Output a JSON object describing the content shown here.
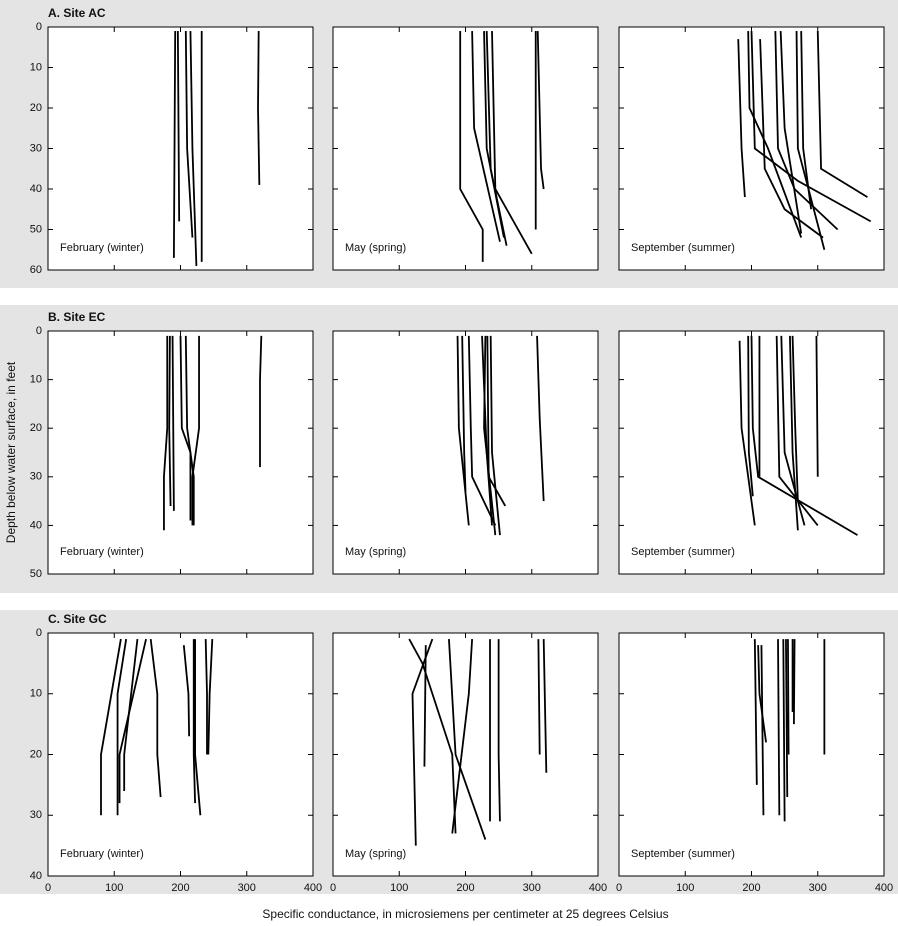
{
  "chart_data": [
    {
      "type": "line",
      "title": "A. Site AC",
      "annotation": "February (winter)",
      "xlim": [
        0,
        400
      ],
      "xticks": [
        0,
        100,
        200,
        300,
        400
      ],
      "ylim": [
        0,
        60
      ],
      "yticks": [
        0,
        10,
        20,
        30,
        40,
        50,
        60
      ],
      "inverted_y": true,
      "color": "#000000",
      "series": [
        {
          "x": [
            192,
            190
          ],
          "values": [
            1,
            57
          ]
        },
        {
          "x": [
            196,
            198
          ],
          "values": [
            1,
            48
          ]
        },
        {
          "x": [
            208,
            210,
            218
          ],
          "values": [
            1,
            30,
            52
          ]
        },
        {
          "x": [
            215,
            218,
            224
          ],
          "values": [
            1,
            30,
            59
          ]
        },
        {
          "x": [
            232,
            232
          ],
          "values": [
            1,
            58
          ]
        },
        {
          "x": [
            318,
            317,
            319
          ],
          "values": [
            1,
            20,
            39
          ]
        }
      ]
    },
    {
      "type": "line",
      "annotation": "May (spring)",
      "xlim": [
        0,
        400
      ],
      "xticks": [
        0,
        100,
        200,
        300,
        400
      ],
      "ylim": [
        0,
        60
      ],
      "yticks": [
        0,
        10,
        20,
        30,
        40,
        50,
        60
      ],
      "inverted_y": true,
      "color": "#000000",
      "series": [
        {
          "x": [
            192,
            192,
            226,
            226
          ],
          "values": [
            1,
            40,
            50,
            58
          ]
        },
        {
          "x": [
            210,
            213,
            252
          ],
          "values": [
            1,
            25,
            53
          ]
        },
        {
          "x": [
            228,
            232,
            258
          ],
          "values": [
            1,
            30,
            52
          ]
        },
        {
          "x": [
            232,
            238,
            262
          ],
          "values": [
            1,
            35,
            54
          ]
        },
        {
          "x": [
            240,
            245,
            300
          ],
          "values": [
            1,
            40,
            56
          ]
        },
        {
          "x": [
            306,
            306
          ],
          "values": [
            1,
            50
          ]
        },
        {
          "x": [
            309,
            314,
            318
          ],
          "values": [
            1,
            35,
            40
          ]
        }
      ]
    },
    {
      "type": "line",
      "annotation": "September (summer)",
      "xlim": [
        0,
        400
      ],
      "xticks": [
        0,
        100,
        200,
        300,
        400
      ],
      "ylim": [
        0,
        60
      ],
      "yticks": [
        0,
        10,
        20,
        30,
        40,
        50,
        60
      ],
      "inverted_y": true,
      "color": "#000000",
      "series": [
        {
          "x": [
            180,
            185,
            190
          ],
          "values": [
            3,
            30,
            42
          ]
        },
        {
          "x": [
            195,
            197,
            225,
            275
          ],
          "values": [
            1,
            20,
            30,
            52
          ]
        },
        {
          "x": [
            200,
            205,
            270,
            380
          ],
          "values": [
            1,
            30,
            38,
            48
          ]
        },
        {
          "x": [
            213,
            220,
            250,
            308
          ],
          "values": [
            3,
            35,
            45,
            52
          ]
        },
        {
          "x": [
            236,
            240,
            265,
            330
          ],
          "values": [
            1,
            30,
            40,
            50
          ]
        },
        {
          "x": [
            244,
            250,
            275
          ],
          "values": [
            1,
            25,
            51
          ]
        },
        {
          "x": [
            268,
            270,
            310
          ],
          "values": [
            1,
            30,
            55
          ]
        },
        {
          "x": [
            275,
            278,
            290
          ],
          "values": [
            1,
            30,
            45
          ]
        },
        {
          "x": [
            300,
            305,
            375
          ],
          "values": [
            1,
            35,
            42
          ]
        }
      ]
    },
    {
      "type": "line",
      "title": "B. Site EC",
      "ylabel": "Depth below water surface, in feet",
      "annotation": "February (winter)",
      "xlim": [
        0,
        400
      ],
      "xticks": [
        0,
        100,
        200,
        300,
        400
      ],
      "ylim": [
        0,
        50
      ],
      "yticks": [
        0,
        10,
        20,
        30,
        40,
        50
      ],
      "inverted_y": true,
      "color": "#000000",
      "series": [
        {
          "x": [
            180,
            180,
            175,
            175
          ],
          "values": [
            1,
            20,
            30,
            41
          ]
        },
        {
          "x": [
            184,
            183,
            185
          ],
          "values": [
            1,
            20,
            36
          ]
        },
        {
          "x": [
            188,
            190
          ],
          "values": [
            1,
            37
          ]
        },
        {
          "x": [
            200,
            202,
            215,
            215
          ],
          "values": [
            1,
            20,
            25,
            39
          ]
        },
        {
          "x": [
            208,
            210,
            220,
            220
          ],
          "values": [
            1,
            20,
            30,
            40
          ]
        },
        {
          "x": [
            228,
            228,
            218,
            218
          ],
          "values": [
            1,
            20,
            30,
            40
          ]
        },
        {
          "x": [
            322,
            320,
            320
          ],
          "values": [
            1,
            10,
            28
          ]
        }
      ]
    },
    {
      "type": "line",
      "annotation": "May (spring)",
      "xlim": [
        0,
        400
      ],
      "xticks": [
        0,
        100,
        200,
        300,
        400
      ],
      "ylim": [
        0,
        50
      ],
      "yticks": [
        0,
        10,
        20,
        30,
        40,
        50
      ],
      "inverted_y": true,
      "color": "#000000",
      "series": [
        {
          "x": [
            188,
            190,
            205
          ],
          "values": [
            1,
            20,
            40
          ]
        },
        {
          "x": [
            195,
            198,
            200
          ],
          "values": [
            1,
            25,
            33
          ]
        },
        {
          "x": [
            205,
            208,
            210,
            245
          ],
          "values": [
            1,
            20,
            30,
            40
          ]
        },
        {
          "x": [
            225,
            232,
            240
          ],
          "values": [
            1,
            25,
            40
          ]
        },
        {
          "x": [
            230,
            228,
            245
          ],
          "values": [
            1,
            20,
            42
          ]
        },
        {
          "x": [
            233,
            235,
            260
          ],
          "values": [
            1,
            30,
            36
          ]
        },
        {
          "x": [
            238,
            240,
            252
          ],
          "values": [
            1,
            25,
            42
          ]
        },
        {
          "x": [
            308,
            312,
            318
          ],
          "values": [
            1,
            18,
            35
          ]
        }
      ]
    },
    {
      "type": "line",
      "annotation": "September (summer)",
      "xlim": [
        0,
        400
      ],
      "xticks": [
        0,
        100,
        200,
        300,
        400
      ],
      "ylim": [
        0,
        50
      ],
      "yticks": [
        0,
        10,
        20,
        30,
        40,
        50
      ],
      "inverted_y": true,
      "color": "#000000",
      "series": [
        {
          "x": [
            182,
            185,
            205
          ],
          "values": [
            2,
            20,
            40
          ]
        },
        {
          "x": [
            195,
            196,
            202
          ],
          "values": [
            1,
            25,
            34
          ]
        },
        {
          "x": [
            200,
            202,
            210,
            360
          ],
          "values": [
            1,
            20,
            30,
            42
          ]
        },
        {
          "x": [
            212,
            212
          ],
          "values": [
            1,
            30
          ]
        },
        {
          "x": [
            238,
            242,
            300
          ],
          "values": [
            1,
            30,
            40
          ]
        },
        {
          "x": [
            245,
            250,
            280
          ],
          "values": [
            1,
            25,
            40
          ]
        },
        {
          "x": [
            258,
            262,
            270
          ],
          "values": [
            1,
            25,
            41
          ]
        },
        {
          "x": [
            262,
            266,
            270
          ],
          "values": [
            1,
            20,
            35
          ]
        },
        {
          "x": [
            298,
            300
          ],
          "values": [
            1,
            30
          ]
        }
      ]
    },
    {
      "type": "line",
      "title": "C. Site GC",
      "annotation": "February (winter)",
      "xlim": [
        0,
        400
      ],
      "xticks": [
        0,
        100,
        200,
        300,
        400
      ],
      "ylim": [
        0,
        40
      ],
      "yticks": [
        0,
        10,
        20,
        30,
        40
      ],
      "inverted_y": true,
      "color": "#000000",
      "series": [
        {
          "x": [
            110,
            80,
            80
          ],
          "values": [
            1,
            20,
            30
          ]
        },
        {
          "x": [
            118,
            105,
            105
          ],
          "values": [
            1,
            10,
            30
          ]
        },
        {
          "x": [
            135,
            115,
            115
          ],
          "values": [
            1,
            20,
            26
          ]
        },
        {
          "x": [
            148,
            108,
            108
          ],
          "values": [
            1,
            20,
            28
          ]
        },
        {
          "x": [
            155,
            165,
            165,
            170
          ],
          "values": [
            1,
            10,
            20,
            27
          ]
        },
        {
          "x": [
            205,
            212,
            213
          ],
          "values": [
            2,
            10,
            17
          ]
        },
        {
          "x": [
            220,
            220,
            222
          ],
          "values": [
            1,
            20,
            28
          ]
        },
        {
          "x": [
            222,
            222,
            230
          ],
          "values": [
            1,
            20,
            30
          ]
        },
        {
          "x": [
            238,
            240,
            240
          ],
          "values": [
            1,
            10,
            20
          ]
        },
        {
          "x": [
            248,
            244,
            242
          ],
          "values": [
            1,
            10,
            20
          ]
        }
      ]
    },
    {
      "type": "line",
      "xlabel": "Specific conductance, in microsiemens per centimeter at 25 degrees Celsius",
      "annotation": "May (spring)",
      "xlim": [
        0,
        400
      ],
      "xticks": [
        0,
        100,
        200,
        300,
        400
      ],
      "ylim": [
        0,
        40
      ],
      "yticks": [
        0,
        10,
        20,
        30,
        40
      ],
      "inverted_y": true,
      "color": "#000000",
      "series": [
        {
          "x": [
            150,
            120,
            125
          ],
          "values": [
            1,
            10,
            35
          ]
        },
        {
          "x": [
            115,
            135,
            180,
            185
          ],
          "values": [
            1,
            5,
            20,
            33
          ]
        },
        {
          "x": [
            140,
            138
          ],
          "values": [
            2,
            22
          ]
        },
        {
          "x": [
            175,
            185,
            230
          ],
          "values": [
            1,
            20,
            34
          ]
        },
        {
          "x": [
            210,
            205,
            180
          ],
          "values": [
            1,
            10,
            33
          ]
        },
        {
          "x": [
            237,
            237
          ],
          "values": [
            1,
            31
          ]
        },
        {
          "x": [
            250,
            250,
            252
          ],
          "values": [
            1,
            20,
            31
          ]
        },
        {
          "x": [
            310,
            312
          ],
          "values": [
            1,
            20
          ]
        },
        {
          "x": [
            318,
            322
          ],
          "values": [
            1,
            23
          ]
        }
      ]
    },
    {
      "type": "line",
      "annotation": "September (summer)",
      "xlim": [
        0,
        400
      ],
      "xticks": [
        0,
        100,
        200,
        300,
        400
      ],
      "ylim": [
        0,
        40
      ],
      "yticks": [
        0,
        10,
        20,
        30,
        40
      ],
      "inverted_y": true,
      "color": "#000000",
      "series": [
        {
          "x": [
            205,
            208
          ],
          "values": [
            1,
            25
          ]
        },
        {
          "x": [
            210,
            212,
            222
          ],
          "values": [
            2,
            10,
            18
          ]
        },
        {
          "x": [
            215,
            218
          ],
          "values": [
            2,
            30
          ]
        },
        {
          "x": [
            240,
            242
          ],
          "values": [
            1,
            30
          ]
        },
        {
          "x": [
            248,
            250
          ],
          "values": [
            1,
            31
          ]
        },
        {
          "x": [
            252,
            254
          ],
          "values": [
            1,
            27
          ]
        },
        {
          "x": [
            255,
            256
          ],
          "values": [
            1,
            20
          ]
        },
        {
          "x": [
            262,
            262
          ],
          "values": [
            1,
            13
          ]
        },
        {
          "x": [
            265,
            264
          ],
          "values": [
            1,
            15
          ]
        },
        {
          "x": [
            310,
            310
          ],
          "values": [
            1,
            20
          ]
        }
      ]
    }
  ]
}
